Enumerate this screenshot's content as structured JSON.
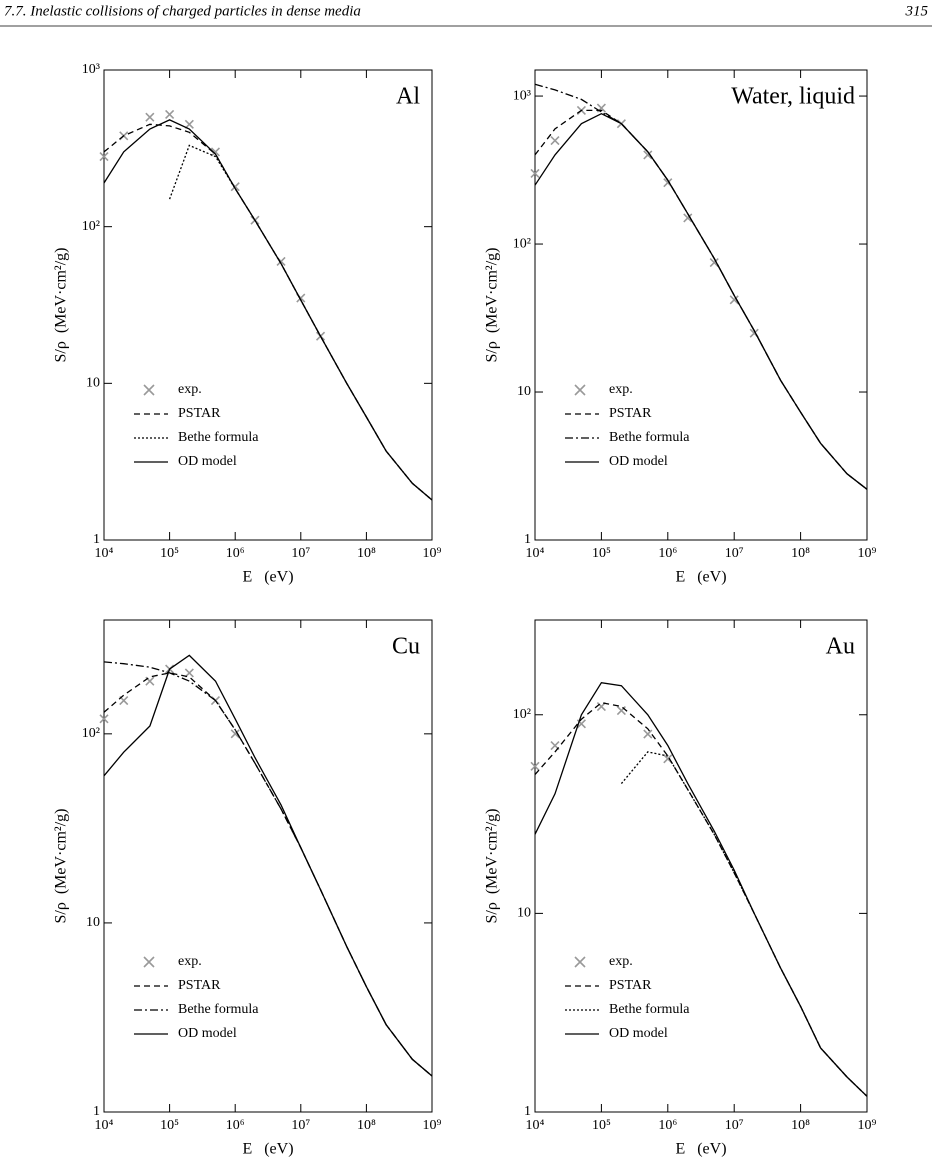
{
  "header": {
    "title": "7.7. Inelastic collisions of charged particles in dense media",
    "page": "315"
  },
  "chart_data": [
    {
      "type": "line",
      "title": "Al",
      "x_label": "E   (eV)",
      "y_label": "S/ρ  (MeV·cm²/g)",
      "log_x": true,
      "log_y": true,
      "x": [
        10000,
        20000,
        50000,
        100000,
        200000,
        500000,
        1000000,
        2000000,
        5000000,
        10000000,
        20000000,
        50000000,
        100000000,
        200000000,
        500000000,
        1000000000
      ],
      "xlim": [
        10000,
        1000000000
      ],
      "xticks": [
        {
          "value": 10000,
          "label": "10⁴"
        },
        {
          "value": 100000,
          "label": "10⁵"
        },
        {
          "value": 1000000,
          "label": "10⁶"
        },
        {
          "value": 10000000,
          "label": "10⁷"
        },
        {
          "value": 100000000,
          "label": "10⁸"
        },
        {
          "value": 1000000000,
          "label": "10⁹"
        }
      ],
      "ylim": [
        1,
        1000
      ],
      "yticks": [
        1,
        10,
        {
          "value": 100,
          "label": "10²"
        },
        {
          "value": 1000,
          "label": "10³"
        }
      ],
      "series": [
        {
          "name": "exp.",
          "color": "#999999",
          "marker": "x",
          "values": [
            280,
            380,
            500,
            520,
            450,
            300,
            180,
            110,
            60,
            35,
            20,
            null,
            null,
            null,
            null,
            null
          ]
        },
        {
          "name": "PSTAR",
          "color": "#000000",
          "dash": "6,4",
          "values": [
            300,
            380,
            450,
            440,
            400,
            290,
            175,
            110,
            58,
            34,
            20,
            10,
            6.1,
            3.7,
            2.3,
            1.8
          ]
        },
        {
          "name": "Bethe formula",
          "color": "#000000",
          "dash": "2,2",
          "values": [
            null,
            null,
            null,
            150,
            330,
            280,
            175,
            110,
            58,
            34,
            20,
            10,
            6.1,
            3.7,
            2.3,
            1.8
          ]
        },
        {
          "name": "OD model",
          "color": "#000000",
          "dash": "none",
          "values": [
            190,
            300,
            420,
            480,
            420,
            290,
            175,
            110,
            58,
            34,
            20,
            10,
            6.1,
            3.7,
            2.3,
            1.8
          ]
        }
      ]
    },
    {
      "type": "line",
      "title": "Water, liquid",
      "x_label": "E   (eV)",
      "y_label": "S/ρ  (MeV·cm²/g)",
      "log_x": true,
      "log_y": true,
      "x": [
        10000,
        20000,
        50000,
        100000,
        200000,
        500000,
        1000000,
        2000000,
        5000000,
        10000000,
        20000000,
        50000000,
        100000000,
        200000000,
        500000000,
        1000000000
      ],
      "xlim": [
        10000,
        1000000000
      ],
      "xticks": [
        {
          "value": 10000,
          "label": "10⁴"
        },
        {
          "value": 100000,
          "label": "10⁵"
        },
        {
          "value": 1000000,
          "label": "10⁶"
        },
        {
          "value": 10000000,
          "label": "10⁷"
        },
        {
          "value": 100000000,
          "label": "10⁸"
        },
        {
          "value": 1000000000,
          "label": "10⁹"
        }
      ],
      "ylim": [
        1,
        1500
      ],
      "yticks": [
        1,
        10,
        {
          "value": 100,
          "label": "10²"
        },
        {
          "value": 1000,
          "label": "10³"
        }
      ],
      "series": [
        {
          "name": "exp.",
          "color": "#999999",
          "marker": "x",
          "values": [
            300,
            500,
            800,
            830,
            650,
            400,
            260,
            150,
            75,
            42,
            25,
            null,
            null,
            null,
            null,
            null
          ]
        },
        {
          "name": "PSTAR",
          "color": "#000000",
          "dash": "6,4",
          "values": [
            400,
            600,
            800,
            800,
            650,
            420,
            270,
            160,
            80,
            45,
            26,
            12,
            7.3,
            4.5,
            2.8,
            2.2
          ]
        },
        {
          "name": "Bethe formula",
          "color": "#000000",
          "dash": "8,3,2,3",
          "values": [
            1200,
            1100,
            950,
            780,
            650,
            420,
            270,
            160,
            80,
            45,
            26,
            12,
            7.3,
            4.5,
            2.8,
            2.2
          ]
        },
        {
          "name": "OD model",
          "color": "#000000",
          "dash": "none",
          "values": [
            250,
            400,
            650,
            760,
            650,
            420,
            270,
            160,
            80,
            45,
            26,
            12,
            7.3,
            4.5,
            2.8,
            2.2
          ]
        }
      ]
    },
    {
      "type": "line",
      "title": "Cu",
      "x_label": "E   (eV)",
      "y_label": "S/ρ  (MeV·cm²/g)",
      "log_x": true,
      "log_y": true,
      "x": [
        10000,
        20000,
        50000,
        100000,
        200000,
        500000,
        1000000,
        2000000,
        5000000,
        10000000,
        20000000,
        50000000,
        100000000,
        200000000,
        500000000,
        1000000000
      ],
      "xlim": [
        10000,
        1000000000
      ],
      "xticks": [
        {
          "value": 10000,
          "label": "10⁴"
        },
        {
          "value": 100000,
          "label": "10⁵"
        },
        {
          "value": 1000000,
          "label": "10⁶"
        },
        {
          "value": 10000000,
          "label": "10⁷"
        },
        {
          "value": 100000000,
          "label": "10⁸"
        },
        {
          "value": 1000000000,
          "label": "10⁹"
        }
      ],
      "ylim": [
        1,
        400
      ],
      "yticks": [
        1,
        10,
        {
          "value": 100,
          "label": "10²"
        }
      ],
      "series": [
        {
          "name": "exp.",
          "color": "#999999",
          "marker": "x",
          "values": [
            120,
            150,
            190,
            220,
            210,
            150,
            100,
            null,
            null,
            null,
            null,
            null,
            null,
            null,
            null,
            null
          ]
        },
        {
          "name": "PSTAR",
          "color": "#000000",
          "dash": "6,4",
          "values": [
            130,
            160,
            200,
            210,
            200,
            150,
            105,
            70,
            40,
            25,
            15,
            7.5,
            4.6,
            2.9,
            1.9,
            1.55
          ]
        },
        {
          "name": "Bethe formula",
          "color": "#000000",
          "dash": "8,3,2,3",
          "values": [
            240,
            235,
            225,
            210,
            190,
            150,
            105,
            70,
            40,
            25,
            15,
            7.5,
            4.6,
            2.9,
            1.9,
            1.55
          ]
        },
        {
          "name": "OD model",
          "color": "#000000",
          "dash": "none",
          "values": [
            60,
            80,
            110,
            220,
            260,
            190,
            120,
            75,
            42,
            25,
            15,
            7.5,
            4.6,
            2.9,
            1.9,
            1.55
          ]
        }
      ]
    },
    {
      "type": "line",
      "title": "Au",
      "x_label": "E   (eV)",
      "y_label": "S/ρ  (MeV·cm²/g)",
      "log_x": true,
      "log_y": true,
      "x": [
        10000,
        20000,
        50000,
        100000,
        200000,
        500000,
        1000000,
        2000000,
        5000000,
        10000000,
        20000000,
        50000000,
        100000000,
        200000000,
        500000000,
        1000000000
      ],
      "xlim": [
        10000,
        1000000000
      ],
      "xticks": [
        {
          "value": 10000,
          "label": "10⁴"
        },
        {
          "value": 100000,
          "label": "10⁵"
        },
        {
          "value": 1000000,
          "label": "10⁶"
        },
        {
          "value": 10000000,
          "label": "10⁷"
        },
        {
          "value": 100000000,
          "label": "10⁸"
        },
        {
          "value": 1000000000,
          "label": "10⁹"
        }
      ],
      "ylim": [
        1,
        300
      ],
      "yticks": [
        1,
        10,
        {
          "value": 100,
          "label": "10²"
        }
      ],
      "series": [
        {
          "name": "exp.",
          "color": "#999999",
          "marker": "x",
          "values": [
            55,
            70,
            90,
            110,
            105,
            80,
            60,
            null,
            null,
            null,
            null,
            null,
            null,
            null,
            null,
            null
          ]
        },
        {
          "name": "PSTAR",
          "color": "#000000",
          "dash": "6,4",
          "values": [
            50,
            65,
            95,
            115,
            110,
            85,
            62,
            42,
            25,
            16,
            10,
            5.3,
            3.4,
            2.1,
            1.5,
            1.2
          ]
        },
        {
          "name": "Bethe formula",
          "color": "#000000",
          "dash": "2,2",
          "values": [
            null,
            null,
            null,
            null,
            45,
            65,
            62,
            42,
            25,
            16,
            10,
            5.3,
            3.4,
            2.1,
            1.5,
            1.2
          ]
        },
        {
          "name": "OD model",
          "color": "#000000",
          "dash": "none",
          "values": [
            25,
            40,
            100,
            145,
            140,
            100,
            70,
            45,
            26,
            16.5,
            10,
            5.3,
            3.4,
            2.1,
            1.5,
            1.2
          ]
        }
      ]
    }
  ]
}
